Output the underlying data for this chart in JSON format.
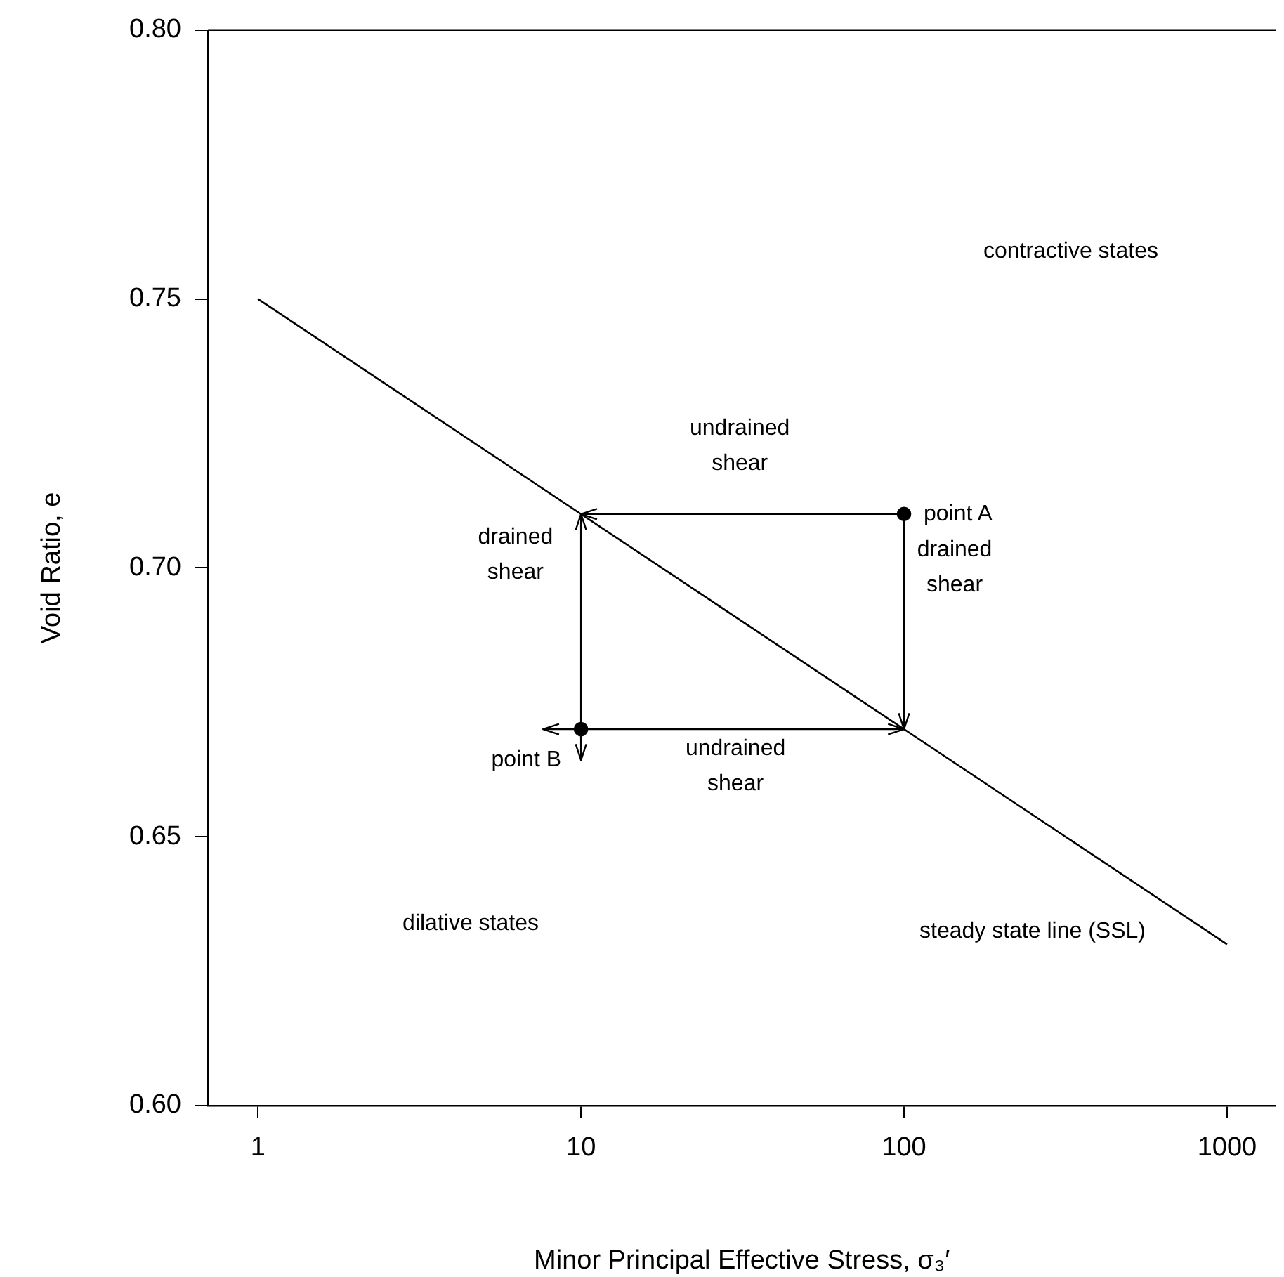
{
  "chart_data": {
    "type": "line",
    "xlabel": "Minor Principal Effective Stress, σ₃′",
    "ylabel": "Void Ratio, e",
    "log": "x",
    "xlim": [
      0.706,
      1416
    ],
    "xticks": [
      1,
      10,
      100,
      1000
    ],
    "ylim": [
      0.6,
      0.8
    ],
    "yticks": [
      {
        "value": 0.6,
        "label": "0.60"
      },
      {
        "value": 0.65,
        "label": "0.65"
      },
      {
        "value": 0.7,
        "label": "0.70"
      },
      {
        "value": 0.75,
        "label": "0.75"
      },
      {
        "value": 0.8,
        "label": "0.80"
      }
    ],
    "series": [
      {
        "name": "steady state line (SSL)",
        "type": "line",
        "color": "#000000",
        "marker": "none",
        "x": [
          1,
          1000
        ],
        "values": [
          0.75,
          0.63
        ]
      },
      {
        "name": "point A",
        "type": "scatter",
        "color": "#000000",
        "marker": "circle",
        "x": [
          100
        ],
        "values": [
          0.71
        ]
      },
      {
        "name": "point B",
        "type": "scatter",
        "color": "#000000",
        "marker": "circle",
        "x": [
          10
        ],
        "values": [
          0.67
        ]
      }
    ],
    "annotations": [
      "undrained\nshear",
      {
        "text": "drained\nshear",
        "x": 100,
        "y": 0.71
      },
      "drained\nshear",
      "undrained\nshear",
      "contractive states",
      "dilative states"
    ]
  }
}
